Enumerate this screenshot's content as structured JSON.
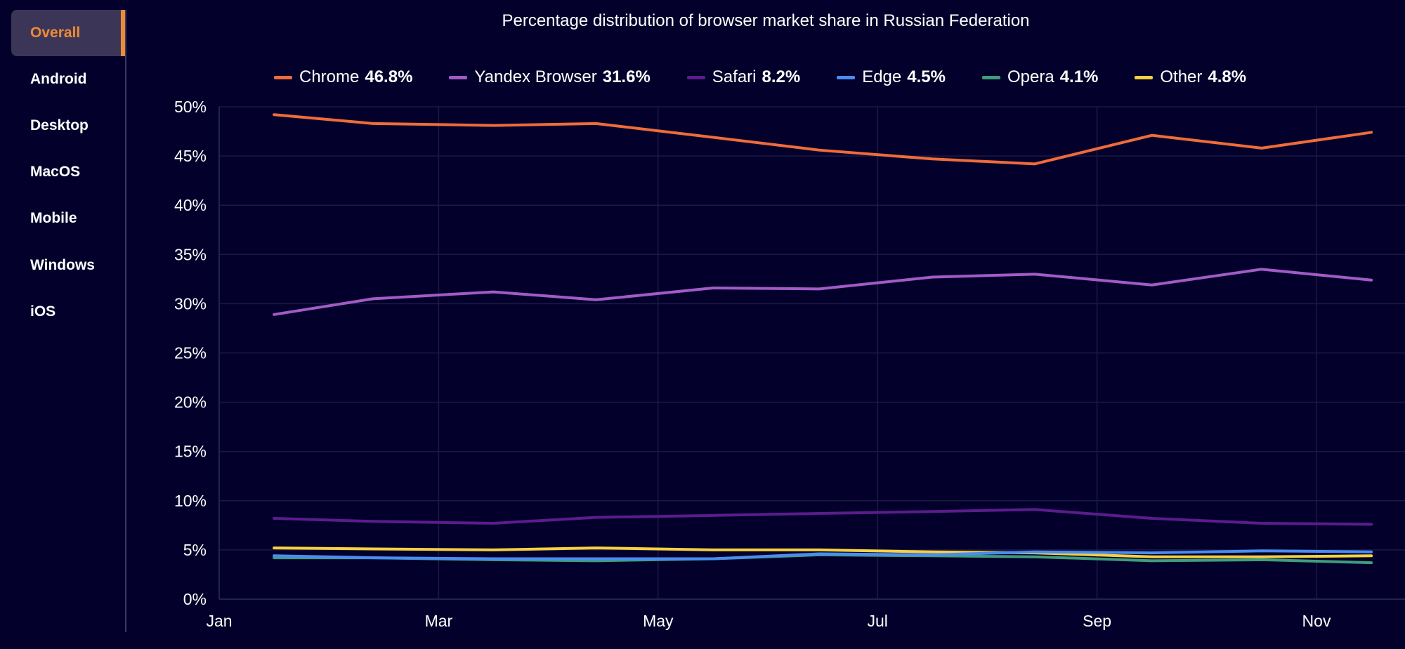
{
  "sidebar": {
    "items": [
      {
        "label": "Overall",
        "active": true
      },
      {
        "label": "Android"
      },
      {
        "label": "Desktop"
      },
      {
        "label": "MacOS"
      },
      {
        "label": "Mobile"
      },
      {
        "label": "Windows"
      },
      {
        "label": "iOS"
      }
    ],
    "accent_color": "#ee8a35"
  },
  "chart_data": {
    "type": "line",
    "title": "Percentage distribution of browser market share in Russian Federation",
    "xlabel": "",
    "ylabel": "",
    "x": [
      "Jan 16",
      "Feb 13",
      "Mar 16",
      "Apr 14",
      "May 16",
      "Jun 15",
      "Jul 16",
      "Aug 14",
      "Sep 16",
      "Oct 16",
      "Nov 16"
    ],
    "x_ticks": [
      "Jan",
      "Mar",
      "May",
      "Jul",
      "Sep",
      "Nov"
    ],
    "y_ticks": [
      "0%",
      "5%",
      "10%",
      "15%",
      "20%",
      "25%",
      "30%",
      "35%",
      "40%",
      "45%",
      "50%"
    ],
    "ylim": [
      0,
      50
    ],
    "grid": true,
    "legend_position": "top",
    "series": [
      {
        "name": "Chrome",
        "share": "46.8%",
        "color": "#ef6b3b",
        "values": [
          49.2,
          48.3,
          48.1,
          48.3,
          46.9,
          45.6,
          44.7,
          44.2,
          47.1,
          45.8,
          47.4
        ]
      },
      {
        "name": "Yandex Browser",
        "share": "31.6%",
        "color": "#a25bc6",
        "values": [
          28.9,
          30.5,
          31.2,
          30.4,
          31.6,
          31.5,
          32.7,
          33.0,
          31.9,
          33.5,
          32.4
        ]
      },
      {
        "name": "Safari",
        "share": "8.2%",
        "color": "#5b1c8c",
        "values": [
          8.2,
          7.9,
          7.7,
          8.3,
          8.5,
          8.7,
          8.9,
          9.1,
          8.2,
          7.7,
          7.6
        ]
      },
      {
        "name": "Edge",
        "share": "4.5%",
        "color": "#4a8cf2",
        "values": [
          4.4,
          4.2,
          4.1,
          4.1,
          4.1,
          4.6,
          4.5,
          4.8,
          4.7,
          4.9,
          4.8
        ]
      },
      {
        "name": "Opera",
        "share": "4.1%",
        "color": "#3f9d7c",
        "values": [
          4.2,
          4.2,
          4.0,
          3.9,
          4.1,
          4.5,
          4.4,
          4.3,
          3.9,
          4.0,
          3.7
        ]
      },
      {
        "name": "Other",
        "share": "4.8%",
        "color": "#f5d042",
        "values": [
          5.2,
          5.1,
          5.0,
          5.2,
          5.0,
          5.0,
          4.8,
          4.7,
          4.3,
          4.3,
          4.4
        ]
      }
    ]
  }
}
